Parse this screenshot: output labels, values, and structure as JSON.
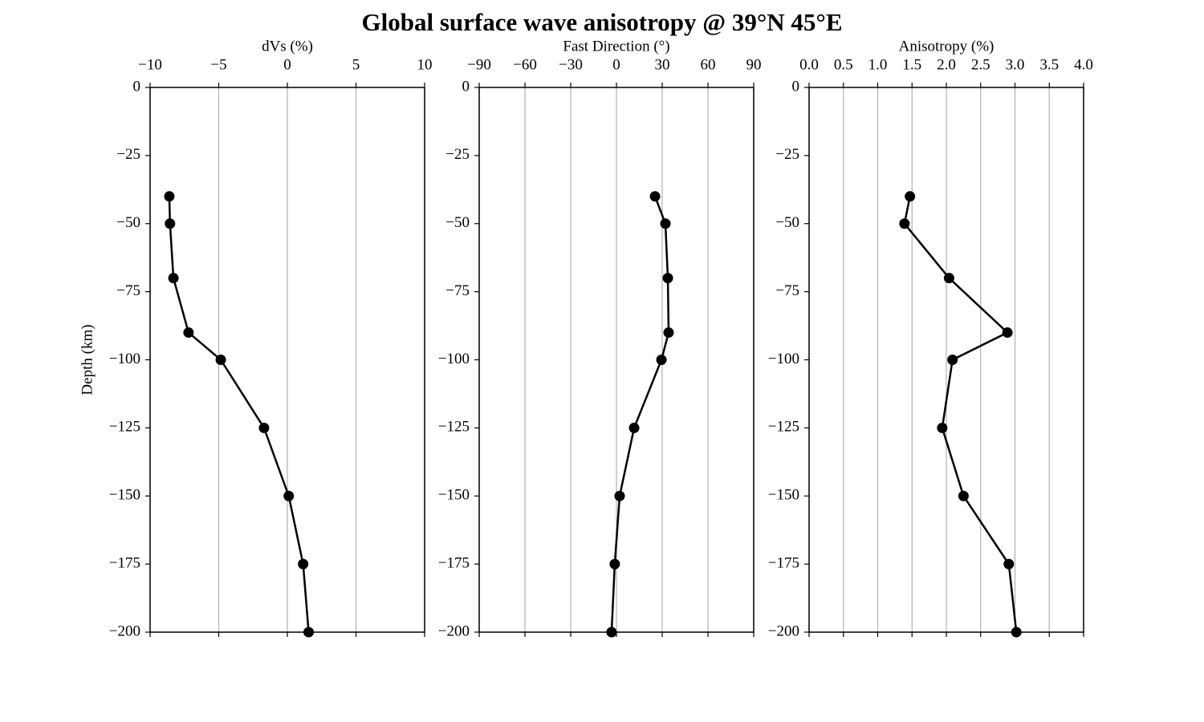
{
  "title": "Global surface wave anisotropy @ 39°N 45°E",
  "chart_data": [
    {
      "type": "line",
      "xlabel": "dVs (%)",
      "ylabel": "Depth (km)",
      "color": "#000000",
      "grid": true,
      "x": [
        -8.6,
        -8.55,
        -8.3,
        -7.2,
        -4.85,
        -1.7,
        0.1,
        1.15,
        1.55
      ],
      "values": [
        -40,
        -50,
        -70,
        -90,
        -100,
        -125,
        -150,
        -175,
        -200
      ],
      "xlim": [
        -10,
        10
      ],
      "xticks": [
        {
          "value": -10,
          "label": "−10"
        },
        {
          "value": -5,
          "label": "−5"
        },
        0,
        5,
        10
      ],
      "ylim": [
        -200,
        0
      ],
      "yticks": [
        0,
        {
          "value": -25,
          "label": "−25"
        },
        {
          "value": -50,
          "label": "−50"
        },
        {
          "value": -75,
          "label": "−75"
        },
        {
          "value": -100,
          "label": "−100"
        },
        {
          "value": -125,
          "label": "−125"
        },
        {
          "value": -150,
          "label": "−150"
        },
        {
          "value": -175,
          "label": "−175"
        },
        {
          "value": -200,
          "label": "−200"
        }
      ]
    },
    {
      "type": "line",
      "xlabel": "Fast Direction (°)",
      "color": "#000000",
      "grid": true,
      "x": [
        25.3,
        32.1,
        33.7,
        34.2,
        29.5,
        11.6,
        2.1,
        -1.1,
        -3.2
      ],
      "values": [
        -40,
        -50,
        -70,
        -90,
        -100,
        -125,
        -150,
        -175,
        -200
      ],
      "xlim": [
        -90,
        90
      ],
      "xticks": [
        {
          "value": -90,
          "label": "−90"
        },
        {
          "value": -60,
          "label": "−60"
        },
        {
          "value": -30,
          "label": "−30"
        },
        0,
        30,
        60,
        90
      ],
      "ylim": [
        -200,
        0
      ],
      "yticks": [
        0,
        {
          "value": -25,
          "label": "−25"
        },
        {
          "value": -50,
          "label": "−50"
        },
        {
          "value": -75,
          "label": "−75"
        },
        {
          "value": -100,
          "label": "−100"
        },
        {
          "value": -125,
          "label": "−125"
        },
        {
          "value": -150,
          "label": "−150"
        },
        {
          "value": -175,
          "label": "−175"
        },
        {
          "value": -200,
          "label": "−200"
        }
      ]
    },
    {
      "type": "line",
      "xlabel": "Anisotropy (%)",
      "color": "#000000",
      "grid": true,
      "x": [
        1.47,
        1.39,
        2.04,
        2.89,
        2.09,
        1.94,
        2.25,
        2.91,
        3.02
      ],
      "values": [
        -40,
        -50,
        -70,
        -90,
        -100,
        -125,
        -150,
        -175,
        -200
      ],
      "xlim": [
        0,
        4
      ],
      "xticks": [
        {
          "value": 0,
          "label": "0.0"
        },
        {
          "value": 0.5,
          "label": "0.5"
        },
        {
          "value": 1,
          "label": "1.0"
        },
        {
          "value": 1.5,
          "label": "1.5"
        },
        {
          "value": 2,
          "label": "2.0"
        },
        {
          "value": 2.5,
          "label": "2.5"
        },
        {
          "value": 3,
          "label": "3.0"
        },
        {
          "value": 3.5,
          "label": "3.5"
        },
        {
          "value": 4,
          "label": "4.0"
        }
      ],
      "ylim": [
        -200,
        0
      ],
      "yticks": [
        0,
        {
          "value": -25,
          "label": "−25"
        },
        {
          "value": -50,
          "label": "−50"
        },
        {
          "value": -75,
          "label": "−75"
        },
        {
          "value": -100,
          "label": "−100"
        },
        {
          "value": -125,
          "label": "−125"
        },
        {
          "value": -150,
          "label": "−150"
        },
        {
          "value": -175,
          "label": "−175"
        },
        {
          "value": -200,
          "label": "−200"
        }
      ]
    }
  ]
}
